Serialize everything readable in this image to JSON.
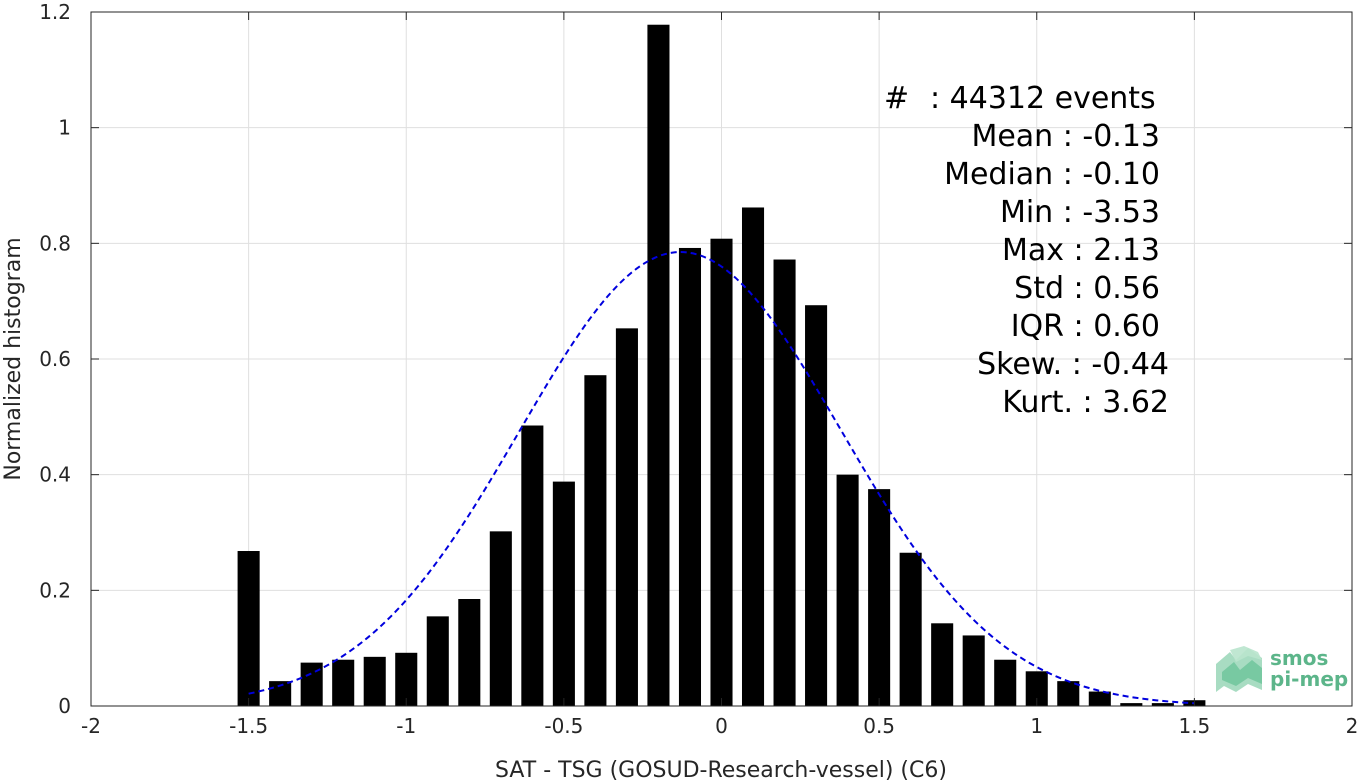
{
  "chart_data": {
    "type": "bar",
    "title": "",
    "xlabel": "SAT - TSG (GOSUD-Research-vessel) (C6)",
    "ylabel": "Normalized histogram",
    "xlim": [
      -2,
      2
    ],
    "ylim": [
      0,
      1.2
    ],
    "grid": true,
    "xticks": [
      -2,
      -1.5,
      -1,
      -0.5,
      0,
      0.5,
      1,
      1.5,
      2
    ],
    "xtick_labels": [
      "-2",
      "-1.5",
      "-1",
      "-0.5",
      "0",
      "0.5",
      "1",
      "1.5",
      "2"
    ],
    "yticks": [
      0,
      0.2,
      0.4,
      0.6,
      0.8,
      1.0,
      1.2
    ],
    "ytick_labels": [
      "0",
      "0.2",
      "0.4",
      "0.6",
      "0.8",
      "1",
      "1.2"
    ],
    "bar_color": "#000000",
    "bins": {
      "centers": [
        -1.5,
        -1.4,
        -1.3,
        -1.2,
        -1.1,
        -1.0,
        -0.9,
        -0.8,
        -0.7,
        -0.6,
        -0.5,
        -0.4,
        -0.3,
        -0.2,
        -0.1,
        0.0,
        0.1,
        0.2,
        0.3,
        0.4,
        0.5,
        0.6,
        0.7,
        0.8,
        0.9,
        1.0,
        1.1,
        1.2,
        1.3,
        1.4,
        1.5
      ],
      "values": [
        0.268,
        0.043,
        0.075,
        0.08,
        0.085,
        0.092,
        0.155,
        0.185,
        0.302,
        0.485,
        0.388,
        0.572,
        0.653,
        1.178,
        0.792,
        0.808,
        0.862,
        0.772,
        0.693,
        0.4,
        0.375,
        0.265,
        0.143,
        0.122,
        0.08,
        0.06,
        0.043,
        0.025,
        0.005,
        0.005,
        0.01
      ],
      "width": 0.07
    },
    "fit": {
      "type": "gaussian",
      "color": "#0000dd",
      "style": "dashed",
      "mean": -0.13,
      "std": 0.51,
      "peak": 0.785,
      "x_range": [
        -1.5,
        1.5
      ]
    },
    "stats": [
      {
        "label": "#",
        "sep": ":",
        "value": "44312 events"
      },
      {
        "label": "Mean",
        "sep": ":",
        "value": "-0.13"
      },
      {
        "label": "Median",
        "sep": ":",
        "value": "-0.10"
      },
      {
        "label": "Min",
        "sep": ":",
        "value": "-3.53"
      },
      {
        "label": "Max",
        "sep": ":",
        "value": "2.13"
      },
      {
        "label": "Std",
        "sep": ":",
        "value": "0.56"
      },
      {
        "label": "IQR",
        "sep": ":",
        "value": "0.60"
      },
      {
        "label": "Skew.",
        "sep": ":",
        "value": "-0.44"
      },
      {
        "label": "Kurt.",
        "sep": ":",
        "value": "3.62"
      }
    ]
  },
  "logo": {
    "line1": "smos",
    "line2": "pi-mep",
    "color": "#5cb58a"
  }
}
